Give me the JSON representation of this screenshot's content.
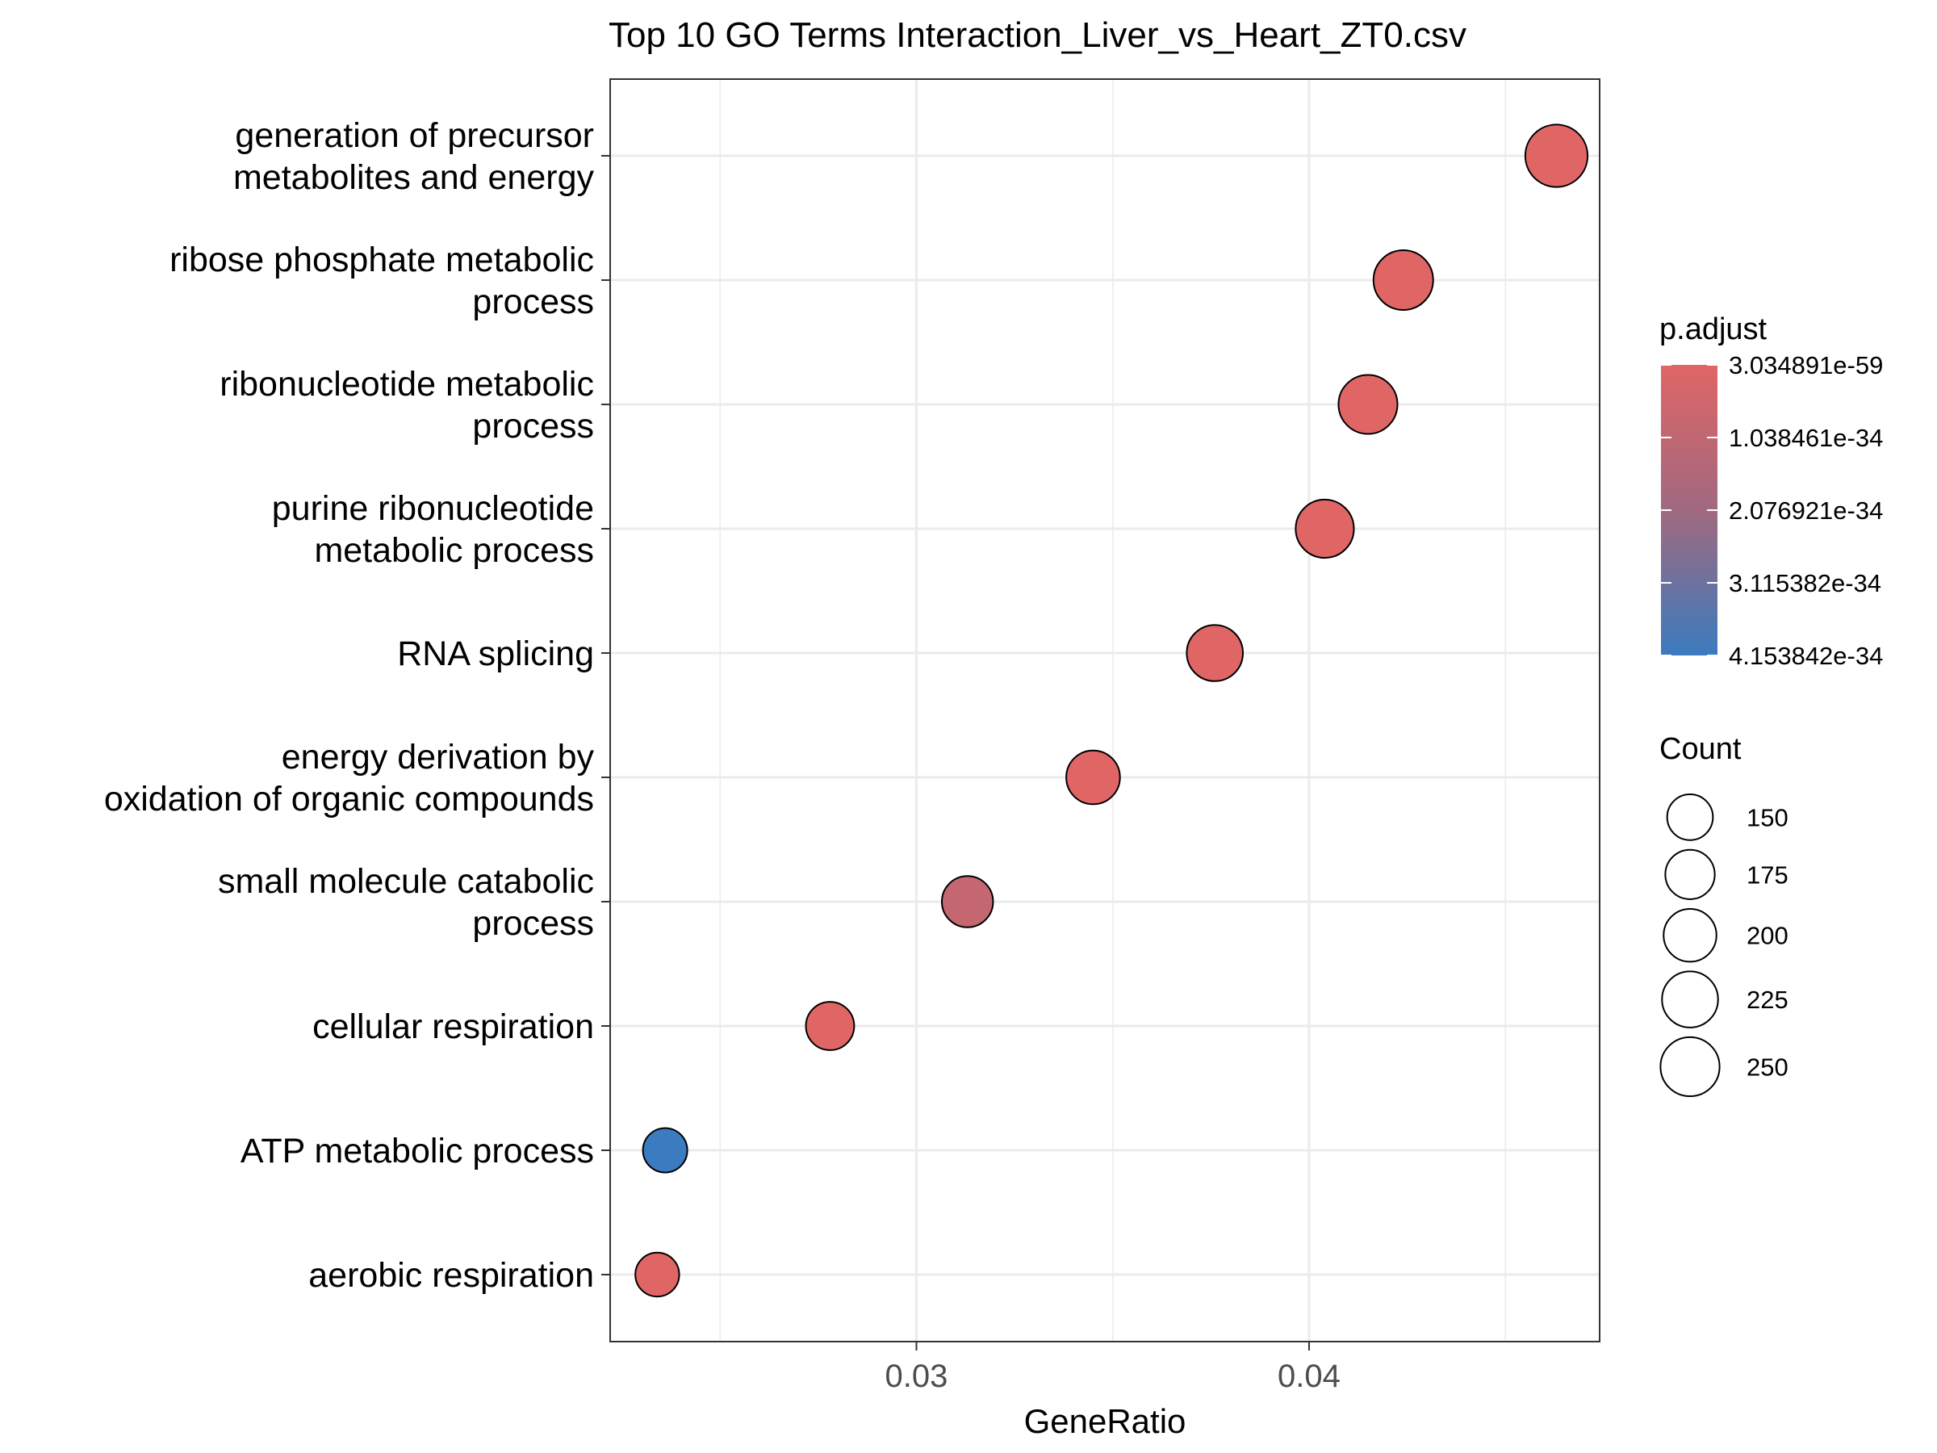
{
  "chart_data": {
    "type": "scatter",
    "title": "Top 10 GO Terms Interaction_Liver_vs_Heart_ZT0.csv",
    "xlabel": "GeneRatio",
    "ylabel": "",
    "xlim": [
      0.0222,
      0.0474
    ],
    "x_ticks": [
      {
        "value": 0.03,
        "label": "0.03"
      },
      {
        "value": 0.04,
        "label": "0.04"
      }
    ],
    "grid": true,
    "categories": [
      "aerobic respiration",
      "ATP metabolic process",
      "cellular respiration",
      "small molecule catabolic process",
      "energy derivation by oxidation of organic compounds",
      "RNA splicing",
      "purine ribonucleotide metabolic process",
      "ribonucleotide metabolic process",
      "ribose phosphate metabolic process",
      "generation of precursor metabolites and energy"
    ],
    "category_label_lines": [
      [
        "aerobic respiration"
      ],
      [
        "ATP metabolic process"
      ],
      [
        "cellular respiration"
      ],
      [
        "small molecule catabolic",
        "process"
      ],
      [
        "energy derivation by",
        "oxidation of organic compounds"
      ],
      [
        "RNA splicing"
      ],
      [
        "purine ribonucleotide",
        "metabolic process"
      ],
      [
        "ribonucleotide metabolic",
        "process"
      ],
      [
        "ribose phosphate metabolic",
        "process"
      ],
      [
        "generation of precursor",
        "metabolites and energy"
      ]
    ],
    "points": [
      {
        "term": "aerobic respiration",
        "gene_ratio": 0.0234,
        "count": 138,
        "p_adjust": 3e-59
      },
      {
        "term": "ATP metabolic process",
        "gene_ratio": 0.0236,
        "count": 141,
        "p_adjust": 4.15e-34
      },
      {
        "term": "cellular respiration",
        "gene_ratio": 0.0278,
        "count": 167,
        "p_adjust": 3e-59
      },
      {
        "term": "small molecule catabolic process",
        "gene_ratio": 0.0313,
        "count": 188,
        "p_adjust": 9e-35
      },
      {
        "term": "energy derivation by oxidation of organic compounds",
        "gene_ratio": 0.0345,
        "count": 207,
        "p_adjust": 3e-59
      },
      {
        "term": "RNA splicing",
        "gene_ratio": 0.0376,
        "count": 226,
        "p_adjust": 3e-59
      },
      {
        "term": "purine ribonucleotide metabolic process",
        "gene_ratio": 0.0404,
        "count": 243,
        "p_adjust": 3e-59
      },
      {
        "term": "ribonucleotide metabolic process",
        "gene_ratio": 0.0415,
        "count": 249,
        "p_adjust": 3e-59
      },
      {
        "term": "ribose phosphate metabolic process",
        "gene_ratio": 0.0424,
        "count": 255,
        "p_adjust": 3e-59
      },
      {
        "term": "generation of precursor metabolites and energy",
        "gene_ratio": 0.0463,
        "count": 278,
        "p_adjust": 3e-59
      }
    ],
    "color_legend": {
      "title": "p.adjust",
      "low_color": "#e06666",
      "mid_color": "#a0697f",
      "high_color": "#3b7bbf",
      "min": 3.034891e-59,
      "max": 4.153842e-34,
      "breaks": [
        {
          "value": 3.034891e-59,
          "label": "3.034891e-59"
        },
        {
          "value": 1.038461e-34,
          "label": "1.038461e-34"
        },
        {
          "value": 2.076921e-34,
          "label": "2.076921e-34"
        },
        {
          "value": 3.115382e-34,
          "label": "3.115382e-34"
        },
        {
          "value": 4.153842e-34,
          "label": "4.153842e-34"
        }
      ]
    },
    "size_legend": {
      "title": "Count",
      "breaks": [
        150,
        175,
        200,
        225,
        250
      ]
    }
  }
}
